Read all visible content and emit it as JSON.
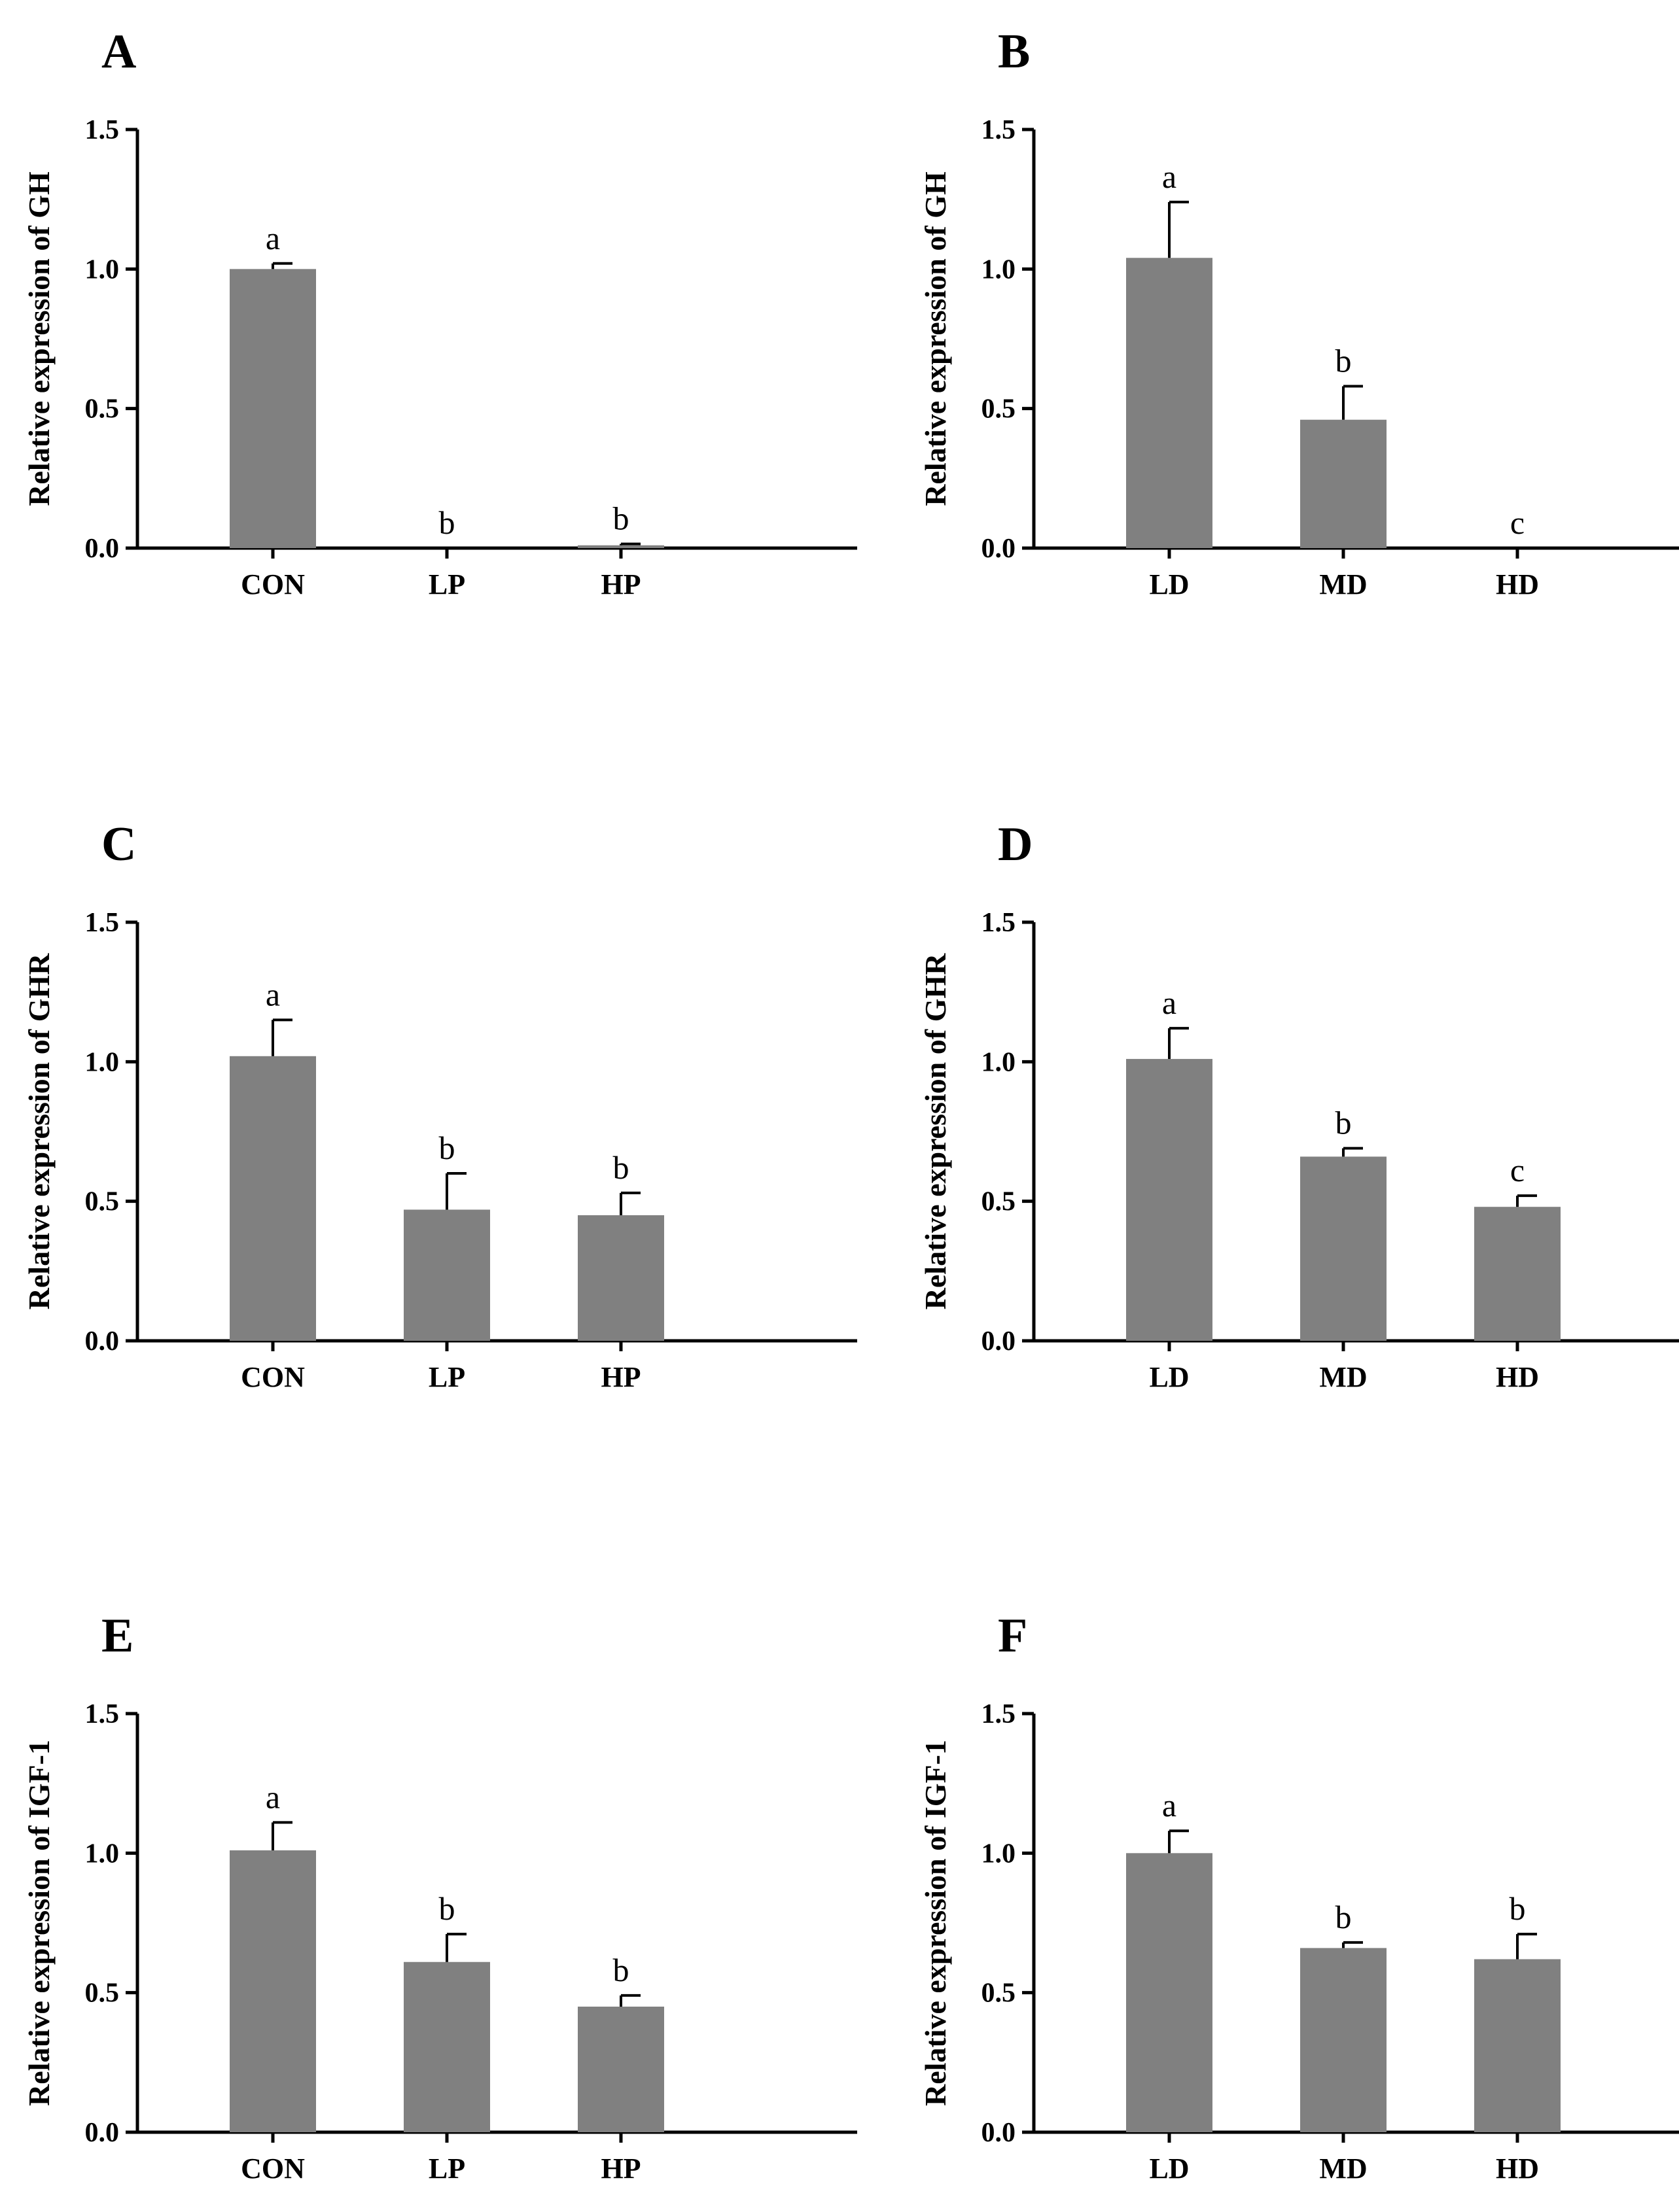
{
  "chart_data": [
    {
      "type": "bar",
      "panel": "A",
      "ylabel": "Relative expression of GH",
      "ylim": [
        0,
        1.5
      ],
      "yticks": [
        "0.0",
        "0.5",
        "1.0",
        "1.5"
      ],
      "categories": [
        "CON",
        "LP",
        "HP"
      ],
      "values": [
        1.0,
        0.0,
        0.01
      ],
      "errors": [
        0.02,
        0.0,
        0.005
      ],
      "significance": [
        "a",
        "b",
        "b"
      ]
    },
    {
      "type": "bar",
      "panel": "B",
      "ylabel": "Relative expression of GH",
      "ylim": [
        0,
        1.5
      ],
      "yticks": [
        "0.0",
        "0.5",
        "1.0",
        "1.5"
      ],
      "categories": [
        "LD",
        "MD",
        "HD"
      ],
      "values": [
        1.04,
        0.46,
        0.0
      ],
      "errors": [
        0.2,
        0.12,
        0.0
      ],
      "significance": [
        "a",
        "b",
        "c"
      ]
    },
    {
      "type": "bar",
      "panel": "C",
      "ylabel": "Relative expression of GHR",
      "ylim": [
        0,
        1.5
      ],
      "yticks": [
        "0.0",
        "0.5",
        "1.0",
        "1.5"
      ],
      "categories": [
        "CON",
        "LP",
        "HP"
      ],
      "values": [
        1.02,
        0.47,
        0.45
      ],
      "errors": [
        0.13,
        0.13,
        0.08
      ],
      "significance": [
        "a",
        "b",
        "b"
      ]
    },
    {
      "type": "bar",
      "panel": "D",
      "ylabel": "Relative expression of GHR",
      "ylim": [
        0,
        1.5
      ],
      "yticks": [
        "0.0",
        "0.5",
        "1.0",
        "1.5"
      ],
      "categories": [
        "LD",
        "MD",
        "HD"
      ],
      "values": [
        1.01,
        0.66,
        0.48
      ],
      "errors": [
        0.11,
        0.03,
        0.04
      ],
      "significance": [
        "a",
        "b",
        "c"
      ]
    },
    {
      "type": "bar",
      "panel": "E",
      "ylabel": "Relative expression of IGF-1",
      "ylim": [
        0,
        1.5
      ],
      "yticks": [
        "0.0",
        "0.5",
        "1.0",
        "1.5"
      ],
      "categories": [
        "CON",
        "LP",
        "HP"
      ],
      "values": [
        1.01,
        0.61,
        0.45
      ],
      "errors": [
        0.1,
        0.1,
        0.04
      ],
      "significance": [
        "a",
        "b",
        "b"
      ]
    },
    {
      "type": "bar",
      "panel": "F",
      "ylabel": "Relative expression of IGF-1",
      "ylim": [
        0,
        1.5
      ],
      "yticks": [
        "0.0",
        "0.5",
        "1.0",
        "1.5"
      ],
      "categories": [
        "LD",
        "MD",
        "HD"
      ],
      "values": [
        1.0,
        0.66,
        0.62
      ],
      "errors": [
        0.08,
        0.02,
        0.09
      ],
      "significance": [
        "a",
        "b",
        "b"
      ]
    }
  ],
  "colors": {
    "bar": "#808080",
    "axis": "#000000"
  }
}
